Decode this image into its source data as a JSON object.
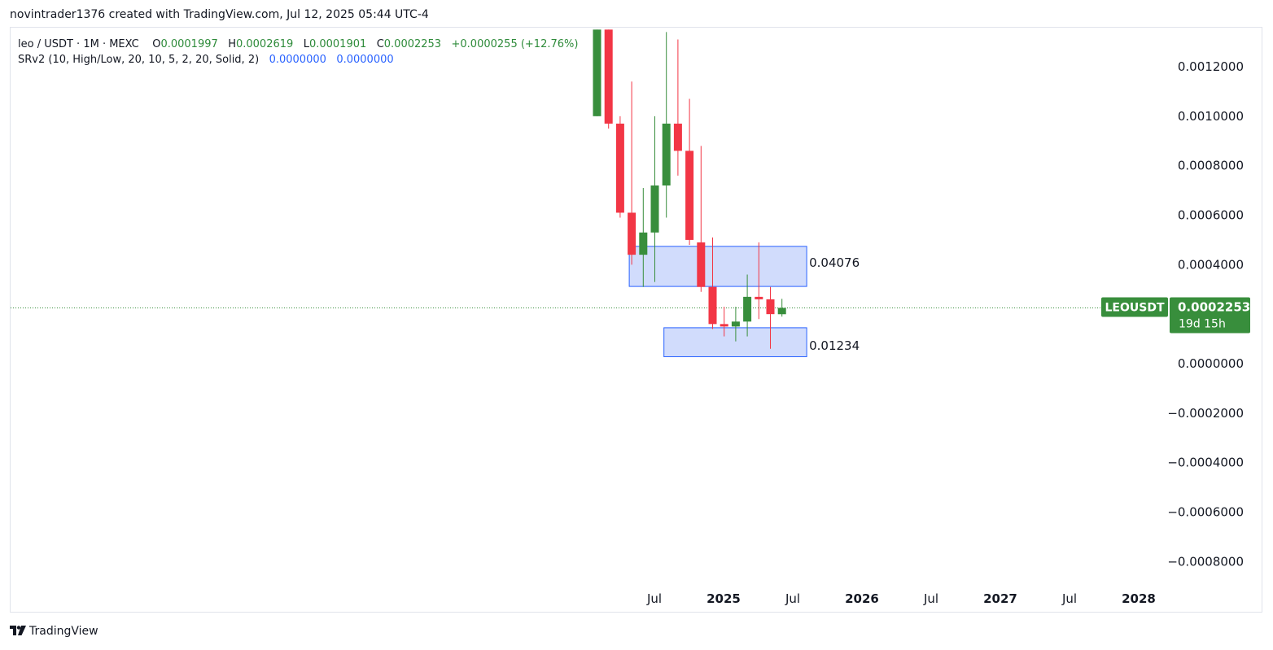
{
  "header": {
    "text": "novintrader1376 created with TradingView.com, Jul 12, 2025 05:44 UTC-4"
  },
  "legend": {
    "symbol": "leo / USDT · 1M · MEXC",
    "o_label": "O",
    "o_value": "0.0001997",
    "h_label": "H",
    "h_value": "0.0002619",
    "l_label": "L",
    "l_value": "0.0001901",
    "c_label": "C",
    "c_value": "0.0002253",
    "change": "+0.0000255 (+12.76%)",
    "indicator": "SRv2 (10, High/Low, 20, 10, 5, 2, 20, Solid, 2)",
    "indicator_v1": "0.0000000",
    "indicator_v2": "0.0000000"
  },
  "price_label": {
    "symbol": "LEOUSDT",
    "price": "0.0002253",
    "countdown": "19d 15h"
  },
  "zones": [
    {
      "label": "0.04076",
      "start": "2024-06",
      "end": "2025-09",
      "top": 0.000474,
      "bottom": 0.000312
    },
    {
      "label": "0.01234",
      "start": "2024-09",
      "end": "2025-09",
      "top": 0.000145,
      "bottom": 2.8e-05
    }
  ],
  "footer": {
    "brand": "TradingView",
    "logo_icon": "tradingview-logo-icon"
  },
  "colors": {
    "up": "#388e3c",
    "down": "#f23645",
    "zone_fill": "#d1dcfc",
    "zone_border": "#2962ff",
    "price_tag": "#388e3c"
  },
  "chart_data": {
    "type": "candlestick",
    "x_axis_labels": [
      "Jul",
      "2025",
      "Jul",
      "2026",
      "Jul",
      "2027",
      "Jul",
      "2028"
    ],
    "y_axis_labels": [
      "0.0012000",
      "0.0010000",
      "0.0008000",
      "0.0006000",
      "0.0004000",
      "0.0000000",
      "−0.0002000",
      "−0.0004000",
      "−0.0006000",
      "−0.0008000"
    ],
    "y_ticks": [
      0.0012,
      0.001,
      0.0008,
      0.0006,
      0.0004,
      0.0,
      -0.0002,
      -0.0004,
      -0.0006,
      -0.0008
    ],
    "ylim": [
      -0.00089,
      0.00135
    ],
    "last_price": 0.0002253,
    "candles": [
      {
        "date": "2024-03",
        "open": 0.001,
        "high": 0.00135,
        "low": 0.001,
        "close": 0.00135
      },
      {
        "date": "2024-04",
        "open": 0.00135,
        "high": 0.00135,
        "low": 0.00095,
        "close": 0.00097
      },
      {
        "date": "2024-05",
        "open": 0.00097,
        "high": 0.001,
        "low": 0.00059,
        "close": 0.00061
      },
      {
        "date": "2024-06",
        "open": 0.00061,
        "high": 0.00114,
        "low": 0.0004,
        "close": 0.00044
      },
      {
        "date": "2024-07",
        "open": 0.00044,
        "high": 0.00071,
        "low": 0.00031,
        "close": 0.00053
      },
      {
        "date": "2024-08",
        "open": 0.00053,
        "high": 0.001,
        "low": 0.00033,
        "close": 0.00072
      },
      {
        "date": "2024-09",
        "open": 0.00072,
        "high": 0.00134,
        "low": 0.00059,
        "close": 0.00097
      },
      {
        "date": "2024-10",
        "open": 0.00097,
        "high": 0.00131,
        "low": 0.00076,
        "close": 0.00086
      },
      {
        "date": "2024-11",
        "open": 0.00086,
        "high": 0.00107,
        "low": 0.00048,
        "close": 0.0005
      },
      {
        "date": "2024-12",
        "open": 0.00049,
        "high": 0.00088,
        "low": 0.00029,
        "close": 0.00031
      },
      {
        "date": "2025-01",
        "open": 0.00031,
        "high": 0.00051,
        "low": 0.00014,
        "close": 0.00016
      },
      {
        "date": "2025-02",
        "open": 0.00016,
        "high": 0.00023,
        "low": 0.00011,
        "close": 0.00015
      },
      {
        "date": "2025-03",
        "open": 0.00015,
        "high": 0.00023,
        "low": 9e-05,
        "close": 0.00017
      },
      {
        "date": "2025-04",
        "open": 0.00017,
        "high": 0.00036,
        "low": 0.00011,
        "close": 0.00027
      },
      {
        "date": "2025-05",
        "open": 0.00027,
        "high": 0.00049,
        "low": 0.00018,
        "close": 0.00026
      },
      {
        "date": "2025-06",
        "open": 0.00026,
        "high": 0.00031,
        "low": 6e-05,
        "close": 0.0002
      },
      {
        "date": "2025-07",
        "open": 0.0001997,
        "high": 0.0002619,
        "low": 0.0001901,
        "close": 0.0002253
      }
    ]
  }
}
